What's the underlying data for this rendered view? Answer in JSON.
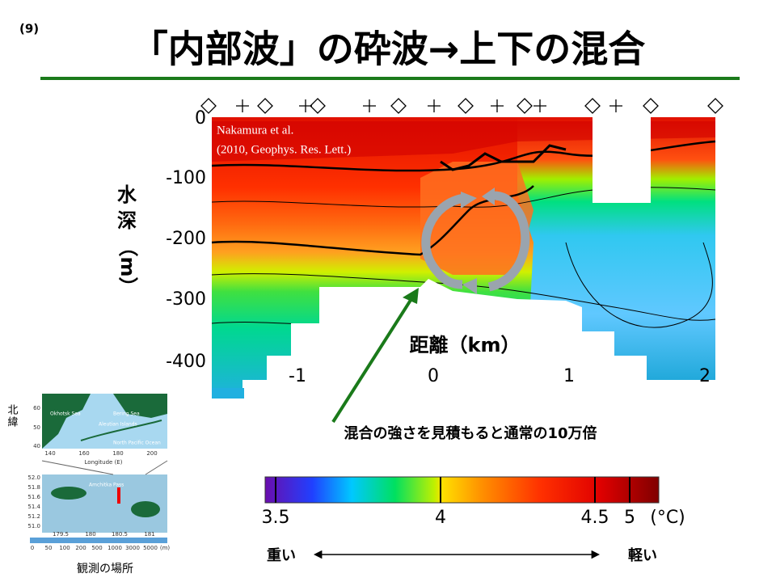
{
  "slide_number": "(9)",
  "title": "「内部波」の砕波→上下の混合",
  "figure": {
    "citation": [
      "Nakamura et al.",
      "(2010, Geophys. Res. Lett.)"
    ],
    "y_label": [
      "水",
      "深",
      "（m）"
    ],
    "x_label": "距離（km）",
    "xticks": [
      "-1",
      "0",
      "1",
      "2"
    ],
    "yticks": [
      "0",
      "-100",
      "-200",
      "-300",
      "-400"
    ]
  },
  "annotation": "混合の強さを見積もると通常の10万倍",
  "colorbar": {
    "labels": [
      "3.5",
      "4",
      "4.5",
      "5"
    ],
    "unit": "(°C)"
  },
  "scale_arrow": {
    "left": "重い",
    "right": "軽い"
  },
  "map": {
    "side_label": [
      "北",
      "緯"
    ],
    "regions": [
      "Okhotsk Sea",
      "Bering Sea",
      "Aleutian Islands",
      "North Pacific Ocean"
    ],
    "top_yticks": [
      "60",
      "50",
      "40"
    ],
    "top_xticks": [
      "140",
      "160",
      "180",
      "200"
    ],
    "top_x_label": "Longitude (E)",
    "pass_label": "Amchitka Pass",
    "bottom_yticks": [
      "52.0",
      "51.8",
      "51.6",
      "51.4",
      "51.2",
      "51.0"
    ],
    "bottom_xticks": [
      "179.5",
      "180",
      "180.5",
      "181"
    ],
    "depth_legend": [
      "0",
      "50",
      "100",
      "200",
      "500",
      "1000",
      "3000",
      "5000",
      "(m)"
    ],
    "caption": "観測の場所"
  }
}
